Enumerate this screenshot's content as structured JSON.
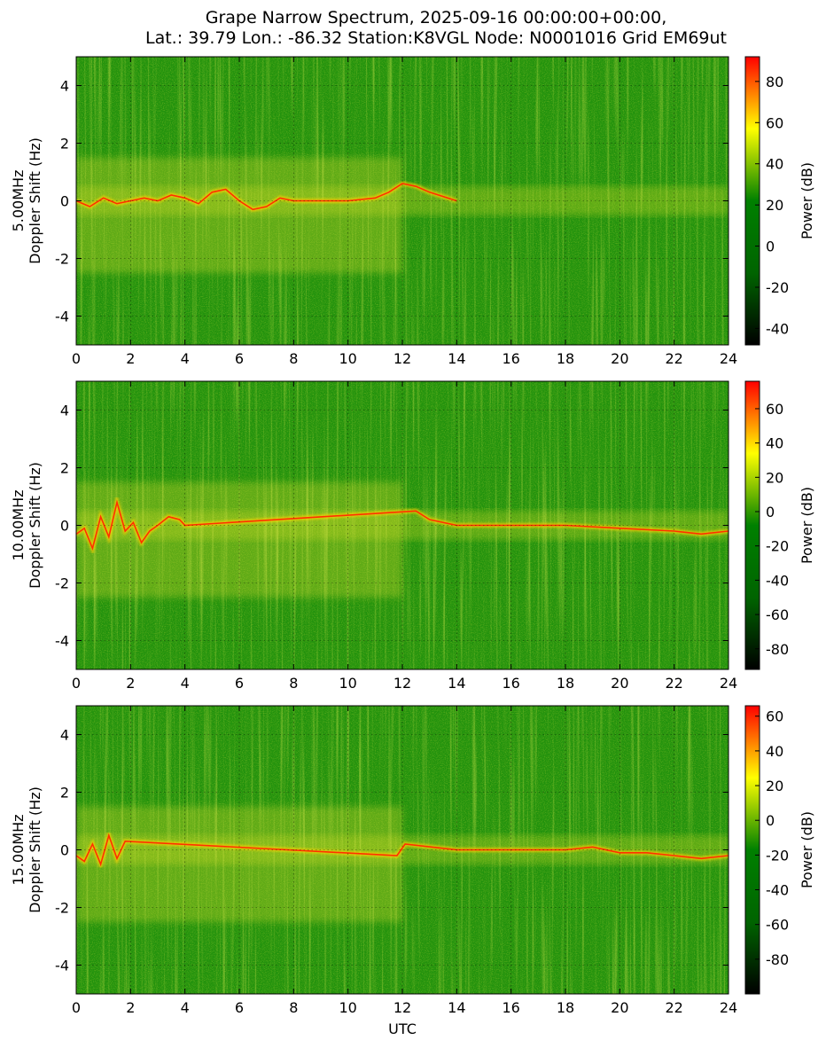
{
  "figure": {
    "title_line1": "Grape Narrow Spectrum, 2025-09-16 00:00:00+00:00,",
    "title_line2": "Lat.: 39.79 Lon.: -86.32 Station:K8VGL Node: N0001016 Grid EM69ut",
    "xlabel": "UTC"
  },
  "chart_data": [
    {
      "type": "heatmap",
      "band": "5.00MHz",
      "ylabel": "Doppler Shift (Hz)",
      "xlim": [
        0,
        24
      ],
      "ylim": [
        -5,
        5
      ],
      "x_ticks": [
        "0",
        "2",
        "4",
        "6",
        "8",
        "10",
        "12",
        "14",
        "16",
        "18",
        "20",
        "22",
        "24"
      ],
      "y_ticks": [
        "4",
        "2",
        "0",
        "-2",
        "-4"
      ],
      "grid": true,
      "colorbar": {
        "label": "Power (dB)",
        "range": [
          -48,
          92
        ],
        "ticks": [
          "80",
          "60",
          "40",
          "20",
          "0",
          "-20",
          "-40"
        ],
        "colors": [
          "#000000",
          "#006400",
          "#008000",
          "#ffff00",
          "#ff0000"
        ]
      },
      "trace": [
        [
          0,
          0.0
        ],
        [
          0.5,
          -0.2
        ],
        [
          1,
          0.1
        ],
        [
          1.5,
          -0.1
        ],
        [
          2,
          0.0
        ],
        [
          2.5,
          0.1
        ],
        [
          3,
          0.0
        ],
        [
          3.5,
          0.2
        ],
        [
          4,
          0.1
        ],
        [
          4.5,
          -0.1
        ],
        [
          5,
          0.3
        ],
        [
          5.5,
          0.4
        ],
        [
          6,
          0.0
        ],
        [
          6.5,
          -0.3
        ],
        [
          7,
          -0.2
        ],
        [
          7.5,
          0.1
        ],
        [
          8,
          0.0
        ],
        [
          9,
          0.0
        ],
        [
          10,
          0.0
        ],
        [
          11,
          0.1
        ],
        [
          11.5,
          0.3
        ],
        [
          12,
          0.6
        ],
        [
          12.5,
          0.5
        ],
        [
          13,
          0.3
        ],
        [
          14,
          0.0
        ]
      ]
    },
    {
      "type": "heatmap",
      "band": "10.00MHz",
      "ylabel": "Doppler Shift (Hz)",
      "xlim": [
        0,
        24
      ],
      "ylim": [
        -5,
        5
      ],
      "x_ticks": [
        "0",
        "2",
        "4",
        "6",
        "8",
        "10",
        "12",
        "14",
        "16",
        "18",
        "20",
        "22",
        "24"
      ],
      "y_ticks": [
        "4",
        "2",
        "0",
        "-2",
        "-4"
      ],
      "grid": true,
      "colorbar": {
        "label": "Power (dB)",
        "range": [
          -92,
          76
        ],
        "ticks": [
          "60",
          "40",
          "20",
          "0",
          "-20",
          "-40",
          "-60",
          "-80"
        ],
        "colors": [
          "#000000",
          "#006400",
          "#008000",
          "#ffff00",
          "#ff0000"
        ]
      },
      "trace": [
        [
          0,
          -0.3
        ],
        [
          0.3,
          -0.1
        ],
        [
          0.6,
          -0.8
        ],
        [
          0.9,
          0.3
        ],
        [
          1.2,
          -0.4
        ],
        [
          1.5,
          0.8
        ],
        [
          1.8,
          -0.2
        ],
        [
          2.1,
          0.1
        ],
        [
          2.4,
          -0.6
        ],
        [
          2.7,
          -0.2
        ],
        [
          3,
          0.0
        ],
        [
          3.4,
          0.3
        ],
        [
          3.8,
          0.2
        ],
        [
          4.0,
          0.0
        ],
        [
          12.5,
          0.5
        ],
        [
          13,
          0.2
        ],
        [
          14,
          0.0
        ],
        [
          16,
          0.0
        ],
        [
          18,
          0.0
        ],
        [
          20,
          -0.1
        ],
        [
          22,
          -0.2
        ],
        [
          23,
          -0.3
        ],
        [
          24,
          -0.2
        ]
      ]
    },
    {
      "type": "heatmap",
      "band": "15.00MHz",
      "ylabel": "Doppler Shift (Hz)",
      "xlim": [
        0,
        24
      ],
      "ylim": [
        -5,
        5
      ],
      "x_ticks": [
        "0",
        "2",
        "4",
        "6",
        "8",
        "10",
        "12",
        "14",
        "16",
        "18",
        "20",
        "22",
        "24"
      ],
      "y_ticks": [
        "4",
        "2",
        "0",
        "-2",
        "-4"
      ],
      "grid": true,
      "colorbar": {
        "label": "Power (dB)",
        "range": [
          -100,
          66
        ],
        "ticks": [
          "60",
          "40",
          "20",
          "0",
          "-20",
          "-40",
          "-60",
          "-80"
        ],
        "colors": [
          "#000000",
          "#006400",
          "#008000",
          "#ffff00",
          "#ff0000"
        ]
      },
      "trace": [
        [
          0,
          -0.2
        ],
        [
          0.3,
          -0.4
        ],
        [
          0.6,
          0.2
        ],
        [
          0.9,
          -0.5
        ],
        [
          1.2,
          0.5
        ],
        [
          1.5,
          -0.3
        ],
        [
          1.8,
          0.3
        ],
        [
          11.8,
          -0.2
        ],
        [
          12.1,
          0.2
        ],
        [
          14,
          0.0
        ],
        [
          16,
          0.0
        ],
        [
          18,
          0.0
        ],
        [
          19,
          0.1
        ],
        [
          20,
          -0.1
        ],
        [
          21,
          -0.1
        ],
        [
          22,
          -0.2
        ],
        [
          23,
          -0.3
        ],
        [
          24,
          -0.2
        ]
      ]
    }
  ]
}
